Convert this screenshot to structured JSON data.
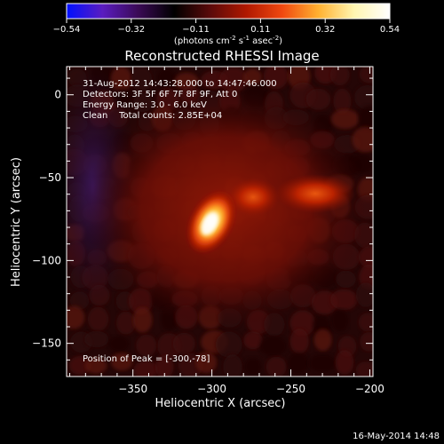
{
  "colorbar": {
    "ticks": [
      "-0.54",
      "-0.32",
      "-0.11",
      "0.11",
      "0.32",
      "0.54"
    ],
    "units_prefix": "(photons cm",
    "units_exp1": "-2",
    "units_mid1": " s",
    "units_exp2": "-1",
    "units_mid2": " asec",
    "units_exp3": "-2",
    "units_suffix": ")",
    "colors": [
      "#0010ff",
      "#5a1cc0",
      "#3a0a55",
      "#000000",
      "#5a0a0a",
      "#b01800",
      "#f04810",
      "#ffb030",
      "#fff6b0",
      "#ffffff"
    ]
  },
  "title": "Reconstructed RHESSI Image",
  "annotations": {
    "line1": "31-Aug-2012 14:43:28.000 to 14:47:46.000",
    "line2": "Detectors: 3F 5F 6F 7F 8F 9F, Att 0",
    "line3": "Energy Range: 3.0 - 6.0 keV",
    "line4": "Clean    Total counts: 2.85E+04",
    "peak": "Position of Peak = [-300,-78]"
  },
  "footer": "16-May-2014 14:48",
  "chart_data": {
    "type": "heatmap",
    "title": "Reconstructed RHESSI Image",
    "xlabel": "Heliocentric X (arcsec)",
    "ylabel": "Heliocentric Y (arcsec)",
    "xlim": [
      -392,
      -198
    ],
    "ylim": [
      -170,
      17
    ],
    "x_ticks": [
      -350,
      -300,
      -250,
      -200
    ],
    "x_tick_labels": [
      "−350",
      "−300",
      "−250",
      "−200"
    ],
    "y_ticks": [
      0,
      -50,
      -100,
      -150
    ],
    "y_tick_labels": [
      "0",
      "−50",
      "−100",
      "−150"
    ],
    "colorbar_range": [
      -0.54,
      0.54
    ],
    "sources": [
      {
        "x": -300,
        "y": -78,
        "relative_intensity": 1.0
      },
      {
        "x": -275,
        "y": -62,
        "relative_intensity": 0.45
      },
      {
        "x": -235,
        "y": -57,
        "relative_intensity": 0.45
      }
    ],
    "negative_region": {
      "x_range": [
        -392,
        -360
      ],
      "y_range": [
        -130,
        10
      ]
    }
  }
}
